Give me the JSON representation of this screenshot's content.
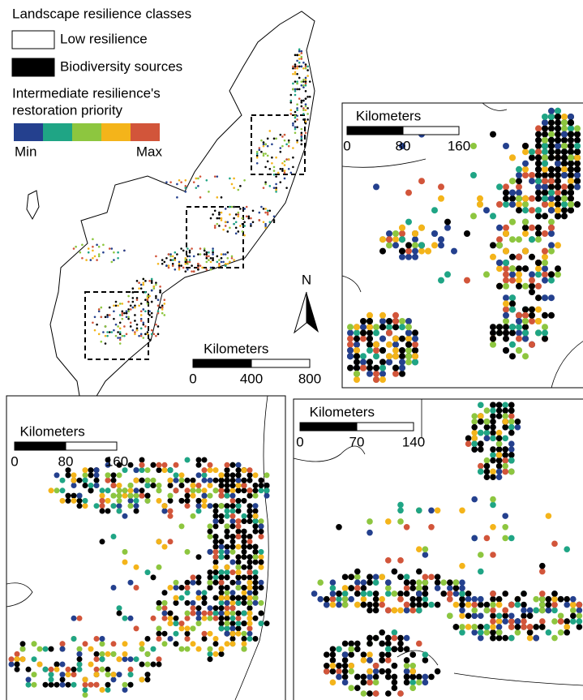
{
  "legend": {
    "title": "Landscape resilience classes",
    "items": [
      {
        "label": "Low resilience",
        "color": "#ffffff"
      },
      {
        "label": "Biodiversity sources",
        "color": "#000000"
      }
    ],
    "priority_title": [
      "Intermediate resilience's",
      "restoration priority"
    ],
    "ramp_colors": [
      "#24408e",
      "#1fa585",
      "#8dc63f",
      "#f4b41a",
      "#d2553a"
    ],
    "min": "Min",
    "max": "Max"
  },
  "main_map": {
    "north": "N",
    "scale_bar": {
      "title": "Kilometers",
      "ticks": [
        0,
        400,
        800
      ]
    }
  },
  "insets": [
    {
      "scale_bar": {
        "title": "Kilometers",
        "ticks": [
          0,
          80,
          160
        ]
      }
    },
    {
      "scale_bar": {
        "title": "Kilometers",
        "ticks": [
          0,
          80,
          160
        ]
      }
    },
    {
      "scale_bar": {
        "title": "Kilometers",
        "ticks": [
          0,
          70,
          140
        ]
      }
    }
  ]
}
